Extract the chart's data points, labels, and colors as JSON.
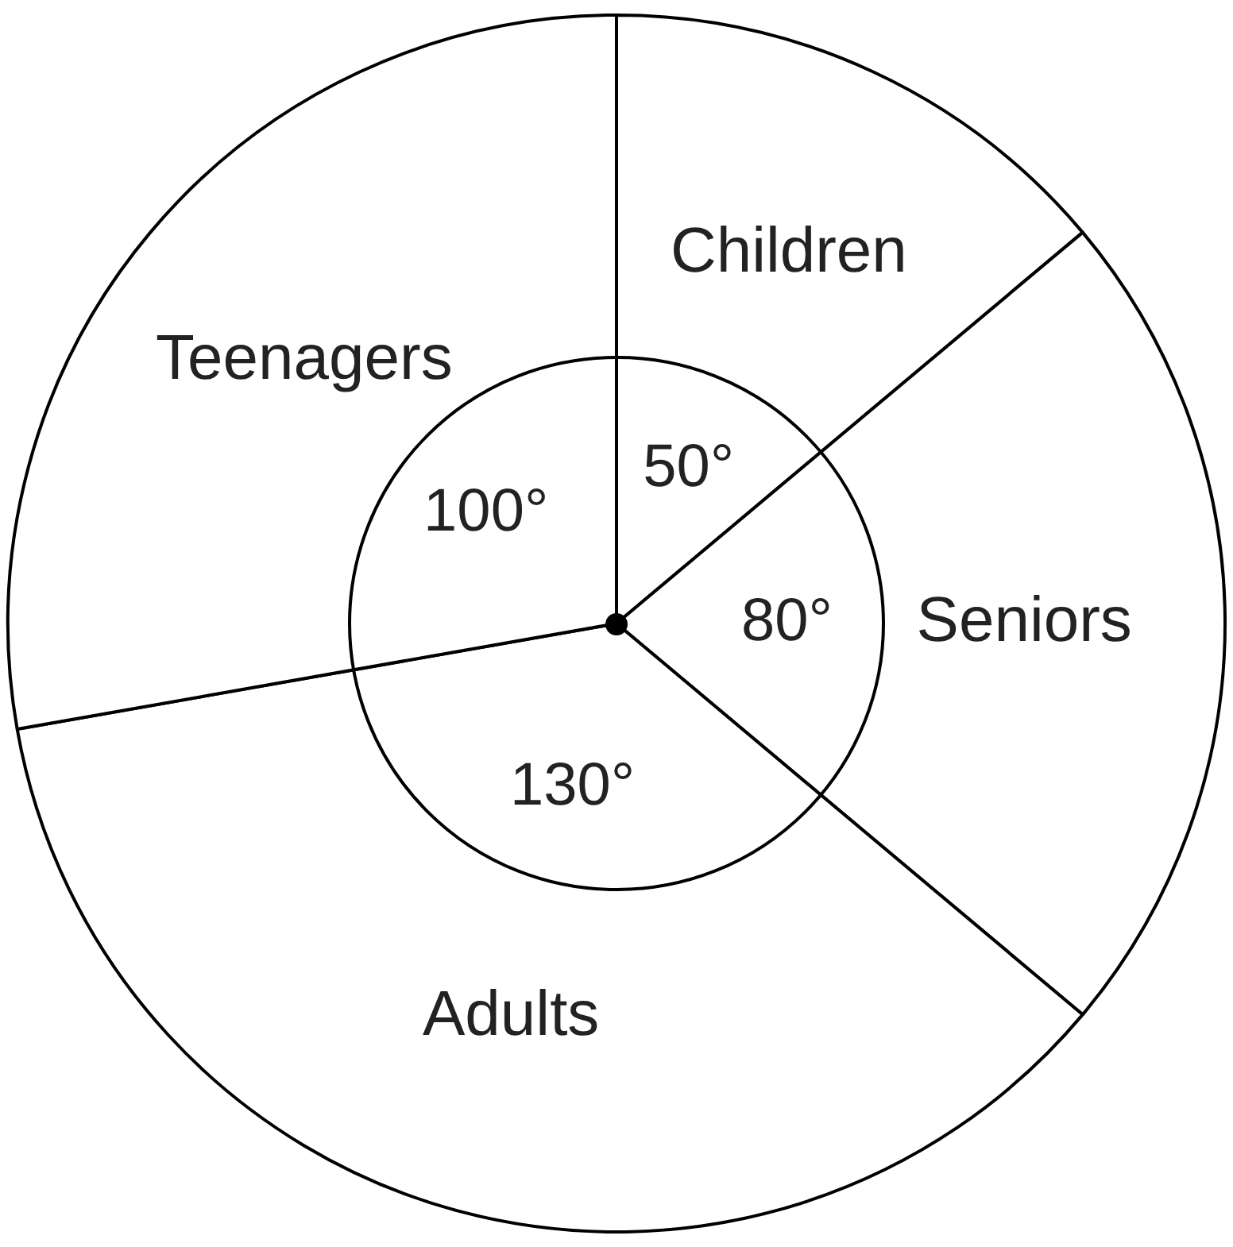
{
  "chart_data": {
    "type": "pie",
    "categories": [
      "Children",
      "Seniors",
      "Adults",
      "Teenagers"
    ],
    "values": [
      50,
      80,
      130,
      100
    ],
    "colors": [
      "#ffffff",
      "#ffffff",
      "#ffffff",
      "#ffffff"
    ],
    "value_labels": [
      "50°",
      "80°",
      "130°",
      "100°"
    ],
    "legend": false
  }
}
